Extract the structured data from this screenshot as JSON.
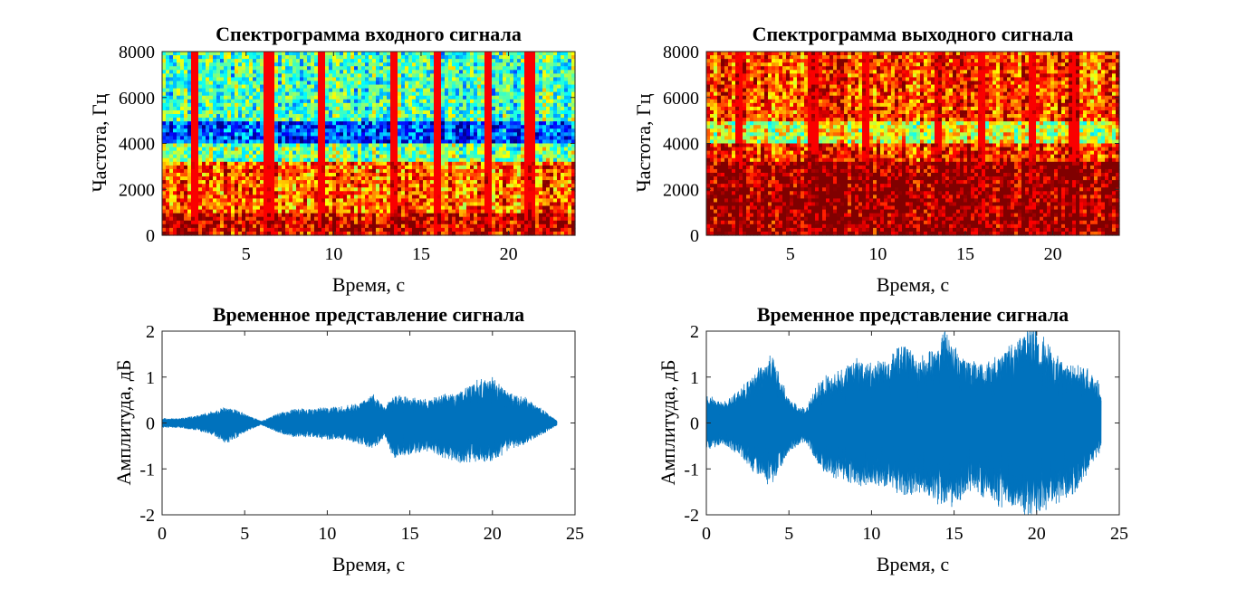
{
  "chart_data": [
    {
      "type": "heatmap",
      "title": "Спектрограмма входного сигнала",
      "xlabel": "Время, с",
      "ylabel": "Частота, Гц",
      "xlim": [
        0.2,
        23.8
      ],
      "ylim": [
        0,
        8000
      ],
      "xticks": [
        5,
        10,
        15,
        20
      ],
      "yticks": [
        0,
        2000,
        4000,
        6000,
        8000
      ],
      "colormap": "jet",
      "segment_boundaries_s": [
        2.0,
        6.3,
        9.3,
        13.4,
        16.0,
        18.8,
        21.2
      ],
      "band_levels": [
        {
          "freq_hz": [
            0,
            1000
          ],
          "level": 0.92
        },
        {
          "freq_hz": [
            1000,
            3200
          ],
          "level": 0.78
        },
        {
          "freq_hz": [
            3200,
            4000
          ],
          "level": 0.5
        },
        {
          "freq_hz": [
            4000,
            5000
          ],
          "level": 0.2
        },
        {
          "freq_hz": [
            5000,
            8000
          ],
          "level": 0.45
        }
      ]
    },
    {
      "type": "heatmap",
      "title": "Спектрограмма выходного сигнала",
      "xlabel": "Время, с",
      "ylabel": "Частота, Гц",
      "xlim": [
        0.2,
        23.8
      ],
      "ylim": [
        0,
        8000
      ],
      "xticks": [
        5,
        10,
        15,
        20
      ],
      "yticks": [
        0,
        2000,
        4000,
        6000,
        8000
      ],
      "colormap": "jet",
      "segment_boundaries_s": [
        2.0,
        6.3,
        9.3,
        13.4,
        16.0,
        18.8,
        21.2
      ],
      "band_levels": [
        {
          "freq_hz": [
            0,
            3200
          ],
          "level": 1.0
        },
        {
          "freq_hz": [
            3200,
            4000
          ],
          "level": 0.85
        },
        {
          "freq_hz": [
            4000,
            5000
          ],
          "level": 0.6
        },
        {
          "freq_hz": [
            5000,
            8000
          ],
          "level": 0.82
        }
      ]
    },
    {
      "type": "area",
      "title": "Временное представление сигнала",
      "xlabel": "Время, с",
      "ylabel": "Амплитуда, дБ",
      "xlim": [
        0,
        25
      ],
      "ylim": [
        -2,
        2
      ],
      "xticks": [
        0,
        5,
        10,
        15,
        20,
        25
      ],
      "yticks": [
        -2,
        -1,
        0,
        1,
        2
      ],
      "color": "#0072BD",
      "series": [
        {
          "x": [
            0,
            1,
            2,
            3,
            4,
            5,
            6,
            7,
            8,
            9,
            10,
            11,
            12,
            12.8,
            13.5,
            14,
            15,
            16,
            17,
            18,
            19,
            20,
            21,
            22,
            23,
            23.9
          ],
          "upper": [
            0.1,
            0.1,
            0.15,
            0.25,
            0.35,
            0.2,
            0.04,
            0.2,
            0.3,
            0.3,
            0.35,
            0.35,
            0.45,
            0.6,
            0.35,
            0.6,
            0.55,
            0.5,
            0.6,
            0.65,
            0.9,
            0.95,
            0.65,
            0.55,
            0.3,
            0.05
          ],
          "lower": [
            -0.1,
            -0.1,
            -0.15,
            -0.25,
            -0.45,
            -0.2,
            -0.04,
            -0.2,
            -0.3,
            -0.3,
            -0.35,
            -0.35,
            -0.45,
            -0.55,
            -0.3,
            -0.75,
            -0.7,
            -0.6,
            -0.75,
            -0.85,
            -0.8,
            -0.85,
            -0.55,
            -0.45,
            -0.25,
            -0.05
          ]
        }
      ]
    },
    {
      "type": "area",
      "title": "Временное представление сигнала",
      "xlabel": "Время, с",
      "ylabel": "Амплитуда, дБ",
      "xlim": [
        0,
        25
      ],
      "ylim": [
        -2,
        2
      ],
      "xticks": [
        0,
        5,
        10,
        15,
        20,
        25
      ],
      "yticks": [
        -2,
        -1,
        0,
        1,
        2
      ],
      "color": "#0072BD",
      "series": [
        {
          "x": [
            0,
            1,
            2,
            3,
            4,
            5,
            6,
            7,
            8,
            9,
            10,
            11,
            12,
            13,
            14,
            14.5,
            15,
            16,
            17,
            18,
            19,
            19.5,
            20,
            21,
            22,
            23,
            23.9
          ],
          "upper": [
            0.6,
            0.45,
            0.7,
            1.1,
            1.5,
            0.5,
            0.3,
            1.0,
            1.1,
            1.35,
            1.3,
            1.4,
            1.7,
            1.4,
            1.6,
            2.0,
            1.6,
            1.3,
            1.3,
            1.5,
            1.8,
            2.0,
            2.0,
            1.5,
            1.2,
            1.2,
            0.8
          ],
          "lower": [
            -0.6,
            -0.45,
            -0.7,
            -1.1,
            -1.35,
            -0.6,
            -0.4,
            -1.0,
            -1.2,
            -1.35,
            -1.3,
            -1.4,
            -1.5,
            -1.5,
            -1.7,
            -1.8,
            -1.75,
            -1.4,
            -1.6,
            -1.8,
            -1.9,
            -2.0,
            -2.0,
            -1.7,
            -1.6,
            -1.1,
            -0.6
          ]
        }
      ]
    }
  ]
}
